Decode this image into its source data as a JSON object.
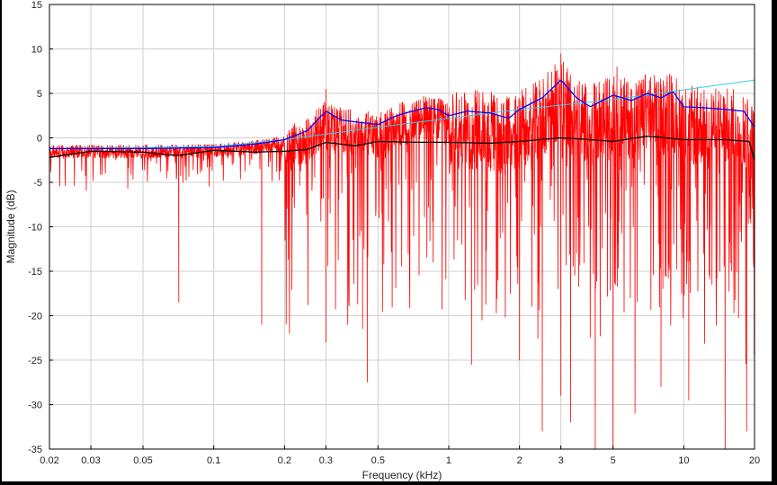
{
  "chart_data": {
    "type": "line",
    "title": "",
    "xlabel": "Frequency (kHz)",
    "ylabel": "Magnitude (dB)",
    "xscale": "log",
    "xlim": [
      0.02,
      20
    ],
    "ylim": [
      -35,
      15
    ],
    "xticks": [
      0.02,
      0.03,
      0.05,
      0.1,
      0.2,
      0.3,
      0.5,
      1,
      2,
      3,
      5,
      10,
      20
    ],
    "xtick_labels": [
      "0.02",
      "0.03",
      "0.05",
      "0.1",
      "0.2",
      "0.3",
      "0.5",
      "1",
      "2",
      "3",
      "5",
      "10",
      "20"
    ],
    "yticks": [
      -35,
      -30,
      -25,
      -20,
      -15,
      -10,
      -5,
      0,
      5,
      10,
      15
    ],
    "ytick_labels": [
      "-35",
      "-30",
      "-25",
      "-20",
      "-15",
      "-10",
      "-5",
      "0",
      "5",
      "10",
      "15"
    ],
    "grid": true,
    "colors": {
      "raw": "#ff0000",
      "smoothed_blue": "#0000ff",
      "trend_cyan": "#33ccee",
      "smoothed_black": "#000000"
    },
    "series": [
      {
        "key": "smoothed_blue",
        "x": [
          0.02,
          0.05,
          0.1,
          0.15,
          0.2,
          0.25,
          0.3,
          0.35,
          0.4,
          0.5,
          0.6,
          0.7,
          0.8,
          0.9,
          1.0,
          1.2,
          1.5,
          1.8,
          2.0,
          2.5,
          3.0,
          3.5,
          4.0,
          5.0,
          6.0,
          7.0,
          8.0,
          9.0,
          10,
          12,
          15,
          18,
          20
        ],
        "y": [
          -1.2,
          -1.2,
          -1.1,
          -0.7,
          -0.2,
          0.8,
          3.0,
          2.0,
          1.8,
          1.5,
          2.5,
          3.0,
          3.4,
          3.2,
          2.5,
          3.0,
          2.8,
          2.2,
          3.2,
          4.5,
          6.5,
          4.5,
          3.5,
          4.8,
          4.2,
          5.0,
          4.5,
          5.2,
          3.5,
          3.4,
          3.2,
          3.0,
          1.2
        ]
      },
      {
        "key": "trend_cyan",
        "x": [
          0.02,
          0.1,
          0.2,
          0.5,
          1,
          2,
          5,
          10,
          20
        ],
        "y": [
          -1.2,
          -1.0,
          -0.2,
          1.2,
          2.2,
          3.2,
          4.3,
          5.4,
          6.5
        ]
      },
      {
        "key": "smoothed_black",
        "x": [
          0.02,
          0.03,
          0.05,
          0.07,
          0.1,
          0.15,
          0.2,
          0.25,
          0.3,
          0.4,
          0.5,
          0.7,
          1,
          1.5,
          2,
          3,
          4,
          5,
          7,
          10,
          15,
          19,
          20
        ],
        "y": [
          -2.2,
          -1.5,
          -1.6,
          -2.0,
          -1.4,
          -1.6,
          -1.5,
          -1.3,
          -0.5,
          -0.9,
          -0.4,
          -0.5,
          -0.5,
          -0.6,
          -0.4,
          0.0,
          -0.2,
          -0.4,
          0.2,
          -0.2,
          -0.2,
          -0.4,
          -2.5
        ]
      }
    ],
    "raw_response": {
      "key": "raw",
      "deep_notches": [
        {
          "x": 0.071,
          "y": -18.5
        },
        {
          "x": 0.16,
          "y": -21.0
        },
        {
          "x": 0.3,
          "y": -23.0
        },
        {
          "x": 0.43,
          "y": -21.5
        },
        {
          "x": 0.45,
          "y": -27.5
        },
        {
          "x": 1.25,
          "y": -25.5
        },
        {
          "x": 2.0,
          "y": -25.0
        },
        {
          "x": 2.5,
          "y": -33.0
        },
        {
          "x": 3.0,
          "y": -29.0
        },
        {
          "x": 3.3,
          "y": -32.0
        },
        {
          "x": 4.2,
          "y": -35.0
        },
        {
          "x": 5.0,
          "y": -35.0
        },
        {
          "x": 6.2,
          "y": -31.0
        },
        {
          "x": 8.0,
          "y": -28.0
        },
        {
          "x": 10.5,
          "y": -29.5
        },
        {
          "x": 15.0,
          "y": -35.0
        },
        {
          "x": 18.5,
          "y": -33.0
        }
      ],
      "peaks": [
        {
          "x": 0.3,
          "y": 5.5
        },
        {
          "x": 3.0,
          "y": 9.5
        },
        {
          "x": 5.2,
          "y": 8.0
        },
        {
          "x": 8.5,
          "y": 7.0
        }
      ]
    }
  }
}
